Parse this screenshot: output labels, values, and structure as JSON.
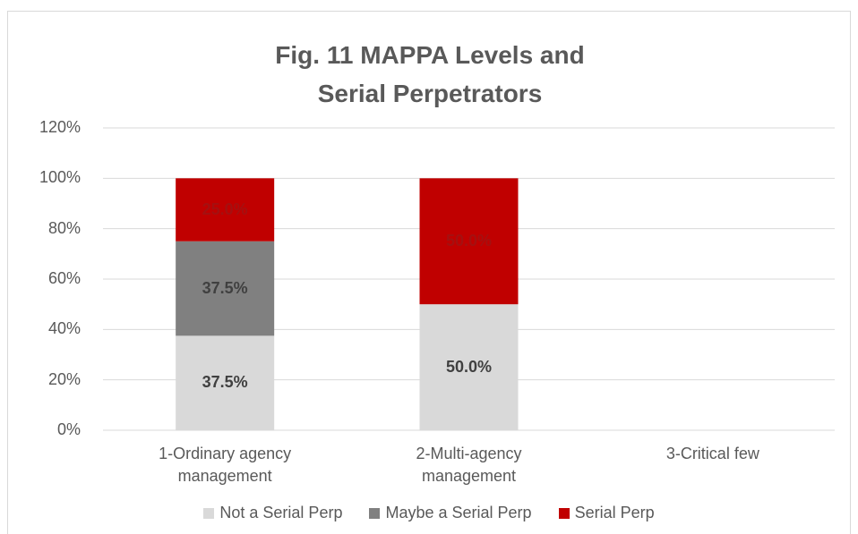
{
  "chart_data": {
    "type": "stacked_bar",
    "title": "Fig. 11 MAPPA Levels and Serial Perpetrators",
    "categories": [
      "1-Ordinary agency management",
      "2-Multi-agency management",
      "3-Critical few"
    ],
    "series": [
      {
        "name": "Not a Serial Perp",
        "color": "#d9d9d9",
        "label_color": "#404040",
        "values": [
          37.5,
          50.0,
          null
        ],
        "value_labels": [
          "37.5%",
          "50.0%",
          null
        ]
      },
      {
        "name": "Maybe a Serial Perp",
        "color": "#808080",
        "label_color": "#404040",
        "values": [
          37.5,
          null,
          null
        ],
        "value_labels": [
          "37.5%",
          null,
          null
        ]
      },
      {
        "name": "Serial Perp",
        "color": "#c00000",
        "label_color": "#a51010",
        "values": [
          25.0,
          50.0,
          null
        ],
        "value_labels": [
          "25.0%",
          "50.0%",
          null
        ]
      }
    ],
    "ylim": [
      0,
      120
    ],
    "yticks": [
      {
        "value": 0,
        "label": "0%"
      },
      {
        "value": 20,
        "label": "20%"
      },
      {
        "value": 40,
        "label": "40%"
      },
      {
        "value": 60,
        "label": "60%"
      },
      {
        "value": 80,
        "label": "80%"
      },
      {
        "value": 100,
        "label": "100%"
      },
      {
        "value": 120,
        "label": "120%"
      }
    ],
    "grid": true,
    "legend": "bottom"
  }
}
